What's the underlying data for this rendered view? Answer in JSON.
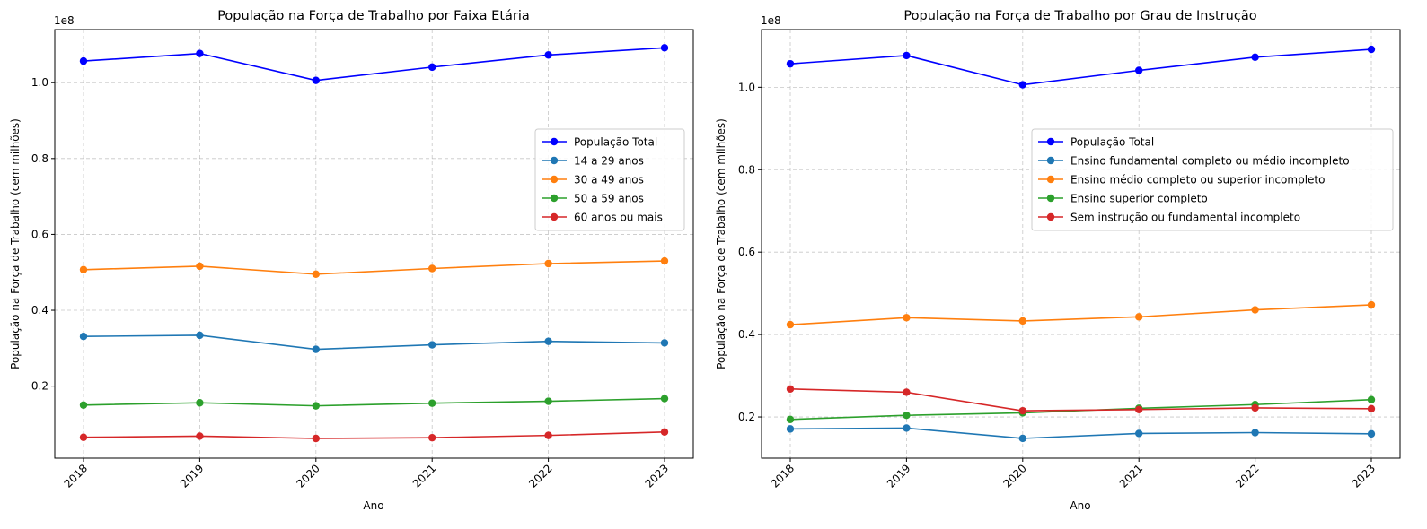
{
  "chart_data": [
    {
      "type": "line",
      "title": "População na Força de Trabalho por Faixa Etária",
      "xlabel": "Ano",
      "ylabel": "População na Força de Trabalho (cem milhões)",
      "offset_label": "1e8",
      "x": [
        "2018",
        "2019",
        "2020",
        "2021",
        "2022",
        "2023"
      ],
      "ylim": [
        0.01,
        1.14
      ],
      "yticks": [
        0.2,
        0.4,
        0.6,
        0.8,
        1.0
      ],
      "ytick_labels": [
        "0.2",
        "0.4",
        "0.6",
        "0.8",
        "1.0"
      ],
      "grid": true,
      "legend_position": "center-right",
      "series": [
        {
          "name": "População Total",
          "color": "#0000ff",
          "values": [
            1.057,
            1.077,
            1.006,
            1.041,
            1.073,
            1.092
          ]
        },
        {
          "name": "14 a 29 anos",
          "color": "#1f77b4",
          "values": [
            0.331,
            0.334,
            0.297,
            0.309,
            0.318,
            0.314
          ]
        },
        {
          "name": "30 a 49 anos",
          "color": "#ff7f0e",
          "values": [
            0.507,
            0.516,
            0.495,
            0.51,
            0.523,
            0.53
          ]
        },
        {
          "name": "50 a 59 anos",
          "color": "#2ca02c",
          "values": [
            0.15,
            0.156,
            0.148,
            0.155,
            0.16,
            0.167
          ]
        },
        {
          "name": "60 anos ou mais",
          "color": "#d62728",
          "values": [
            0.065,
            0.068,
            0.062,
            0.064,
            0.07,
            0.079
          ]
        }
      ]
    },
    {
      "type": "line",
      "title": "População na Força de Trabalho por Grau de Instrução",
      "xlabel": "Ano",
      "ylabel": "População na Força de Trabalho (cem milhões)",
      "offset_label": "1e8",
      "x": [
        "2018",
        "2019",
        "2020",
        "2021",
        "2022",
        "2023"
      ],
      "ylim": [
        0.1,
        1.14
      ],
      "yticks": [
        0.2,
        0.4,
        0.6,
        0.8,
        1.0
      ],
      "ytick_labels": [
        "0.2",
        "0.4",
        "0.6",
        "0.8",
        "1.0"
      ],
      "grid": true,
      "legend_position": "center-right",
      "series": [
        {
          "name": "População Total",
          "color": "#0000ff",
          "values": [
            1.057,
            1.077,
            1.006,
            1.041,
            1.073,
            1.092
          ]
        },
        {
          "name": "Ensino fundamental completo ou médio incompleto",
          "color": "#1f77b4",
          "values": [
            0.171,
            0.173,
            0.148,
            0.16,
            0.162,
            0.159
          ]
        },
        {
          "name": "Ensino médio completo ou superior incompleto",
          "color": "#ff7f0e",
          "values": [
            0.424,
            0.441,
            0.433,
            0.443,
            0.46,
            0.472
          ]
        },
        {
          "name": "Ensino superior completo",
          "color": "#2ca02c",
          "values": [
            0.194,
            0.204,
            0.21,
            0.221,
            0.23,
            0.242
          ]
        },
        {
          "name": "Sem instrução ou fundamental incompleto",
          "color": "#d62728",
          "values": [
            0.268,
            0.26,
            0.215,
            0.218,
            0.222,
            0.22
          ]
        }
      ]
    }
  ]
}
